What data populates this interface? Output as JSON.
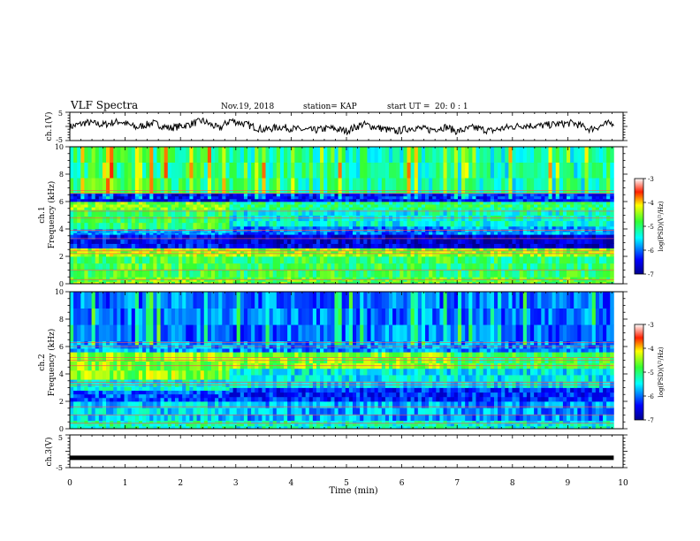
{
  "header": {
    "title": "VLF Spectra",
    "date": "Nov.19, 2018",
    "station": "station= KAP",
    "start_label": "start  UT =",
    "start_time": "20: 0  : 1"
  },
  "chart_data": [
    {
      "type": "line",
      "panel": "ch1-waveform",
      "ylabel": "ch.1(V)",
      "ylim": [
        -5,
        5
      ],
      "yticks": [
        "5",
        "-5"
      ],
      "xlim": [
        0,
        10
      ],
      "data_xmax": 9.83,
      "series": [
        {
          "x": [
            0,
            0.3,
            0.6,
            0.9,
            1.2,
            1.5,
            1.8,
            2.1,
            2.4,
            2.7,
            2.9,
            3.2,
            3.5,
            3.8,
            4.1,
            4.4,
            4.7,
            5.0,
            5.3,
            5.6,
            5.9,
            6.2,
            6.5,
            6.8,
            7.0,
            7.3,
            7.6,
            7.9,
            8.2,
            8.5,
            8.8,
            9.1,
            9.4,
            9.7,
            9.83
          ],
          "y": [
            -0.2,
            1.4,
            0.6,
            1.8,
            -0.4,
            1.2,
            -0.6,
            0.4,
            2.0,
            -0.8,
            2.2,
            0.6,
            -1.2,
            -0.2,
            -1.0,
            -1.4,
            -0.6,
            -1.6,
            0.8,
            -0.6,
            -1.8,
            -0.4,
            -1.2,
            -0.2,
            -1.8,
            -0.4,
            -1.6,
            -0.4,
            0.4,
            0.2,
            0.8,
            1.2,
            -1.0,
            0.8,
            1.4
          ]
        }
      ]
    },
    {
      "type": "heatmap",
      "panel": "ch1-spectrogram",
      "ylabel": "Frequency (kHz)",
      "channel_label": "ch.1",
      "ylim": [
        0,
        10
      ],
      "yticks": [
        "0",
        "2",
        "4",
        "6",
        "8",
        "10"
      ],
      "xlim": [
        0,
        10
      ],
      "data_xmax": 9.83,
      "colorbar": {
        "label": "log(PSD)(V²/Hz)",
        "range": [
          -7,
          -3
        ],
        "ticks": [
          "-3",
          "-4",
          "-5",
          "-6",
          "-7"
        ]
      },
      "segments": [
        {
          "x0": 0,
          "x1": 2.9,
          "bands": [
            {
              "f0": 0,
              "f1": 0.5,
              "level": -4.6
            },
            {
              "f0": 0.5,
              "f1": 2.0,
              "level": -4.8
            },
            {
              "f0": 2.0,
              "f1": 2.6,
              "level": -4.4
            },
            {
              "f0": 2.6,
              "f1": 3.6,
              "level": -6.4
            },
            {
              "f0": 3.6,
              "f1": 4.0,
              "level": -5.8
            },
            {
              "f0": 4.0,
              "f1": 5.4,
              "level": -4.9
            },
            {
              "f0": 5.4,
              "f1": 6.0,
              "level": -4.6
            },
            {
              "f0": 6.0,
              "f1": 6.6,
              "level": -6.5
            },
            {
              "f0": 6.6,
              "f1": 10.0,
              "level": -5.0
            }
          ]
        },
        {
          "x0": 2.9,
          "x1": 6.9,
          "bands": [
            {
              "f0": 0,
              "f1": 0.5,
              "level": -4.7
            },
            {
              "f0": 0.5,
              "f1": 2.0,
              "level": -4.9
            },
            {
              "f0": 2.0,
              "f1": 2.6,
              "level": -4.5
            },
            {
              "f0": 2.6,
              "f1": 3.6,
              "level": -6.6
            },
            {
              "f0": 3.6,
              "f1": 4.2,
              "level": -6.0
            },
            {
              "f0": 4.2,
              "f1": 5.4,
              "level": -5.4
            },
            {
              "f0": 5.4,
              "f1": 6.0,
              "level": -5.1
            },
            {
              "f0": 6.0,
              "f1": 6.6,
              "level": -6.4
            },
            {
              "f0": 6.6,
              "f1": 10.0,
              "level": -5.2
            }
          ]
        },
        {
          "x0": 6.9,
          "x1": 9.83,
          "bands": [
            {
              "f0": 0,
              "f1": 0.5,
              "level": -4.7
            },
            {
              "f0": 0.5,
              "f1": 2.0,
              "level": -5.0
            },
            {
              "f0": 2.0,
              "f1": 2.6,
              "level": -4.5
            },
            {
              "f0": 2.6,
              "f1": 3.6,
              "level": -6.7
            },
            {
              "f0": 3.6,
              "f1": 4.2,
              "level": -5.8
            },
            {
              "f0": 4.2,
              "f1": 5.4,
              "level": -5.3
            },
            {
              "f0": 5.4,
              "f1": 6.0,
              "level": -5.0
            },
            {
              "f0": 6.0,
              "f1": 6.6,
              "level": -6.3
            },
            {
              "f0": 6.6,
              "f1": 10.0,
              "level": -5.3
            }
          ]
        }
      ],
      "lines": [
        0.3,
        1.0,
        2.2,
        2.4,
        3.3,
        3.9,
        4.8,
        5.3,
        6.6,
        6.8
      ]
    },
    {
      "type": "heatmap",
      "panel": "ch2-spectrogram",
      "ylabel": "Frequency (kHz)",
      "channel_label": "ch.2",
      "ylim": [
        0,
        10
      ],
      "yticks": [
        "0",
        "2",
        "4",
        "6",
        "8",
        "10"
      ],
      "xlim": [
        0,
        10
      ],
      "data_xmax": 9.83,
      "colorbar": {
        "label": "log(PSD)(V²/Hz)",
        "range": [
          -7,
          -3
        ],
        "ticks": [
          "-3",
          "-4",
          "-5",
          "-6",
          "-7"
        ]
      },
      "segments": [
        {
          "x0": 0,
          "x1": 2.9,
          "bands": [
            {
              "f0": 0,
              "f1": 0.6,
              "level": -5.2
            },
            {
              "f0": 0.6,
              "f1": 2.0,
              "level": -5.6
            },
            {
              "f0": 2.0,
              "f1": 2.8,
              "level": -6.1
            },
            {
              "f0": 2.8,
              "f1": 3.6,
              "level": -5.4
            },
            {
              "f0": 3.6,
              "f1": 5.6,
              "level": -4.5
            },
            {
              "f0": 5.6,
              "f1": 6.4,
              "level": -5.8
            },
            {
              "f0": 6.4,
              "f1": 10.0,
              "level": -6.0
            }
          ]
        },
        {
          "x0": 2.9,
          "x1": 6.9,
          "bands": [
            {
              "f0": 0,
              "f1": 0.6,
              "level": -5.3
            },
            {
              "f0": 0.6,
              "f1": 2.0,
              "level": -5.8
            },
            {
              "f0": 2.0,
              "f1": 3.0,
              "level": -6.3
            },
            {
              "f0": 3.0,
              "f1": 4.4,
              "level": -5.5
            },
            {
              "f0": 4.4,
              "f1": 5.6,
              "level": -4.6
            },
            {
              "f0": 5.6,
              "f1": 6.4,
              "level": -5.9
            },
            {
              "f0": 6.4,
              "f1": 10.0,
              "level": -6.0
            }
          ]
        },
        {
          "x0": 6.9,
          "x1": 9.83,
          "bands": [
            {
              "f0": 0,
              "f1": 0.6,
              "level": -5.4
            },
            {
              "f0": 0.6,
              "f1": 2.0,
              "level": -5.9
            },
            {
              "f0": 2.0,
              "f1": 3.0,
              "level": -6.3
            },
            {
              "f0": 3.0,
              "f1": 4.4,
              "level": -5.5
            },
            {
              "f0": 4.4,
              "f1": 5.6,
              "level": -4.9
            },
            {
              "f0": 5.6,
              "f1": 6.4,
              "level": -5.9
            },
            {
              "f0": 6.4,
              "f1": 10.0,
              "level": -6.0
            }
          ]
        }
      ],
      "lines": [
        0.4,
        1.0,
        1.6,
        3.2,
        3.4,
        4.6,
        5.0,
        5.2,
        6.0,
        6.3
      ]
    },
    {
      "type": "line",
      "panel": "ch3-waveform",
      "ylabel": "ch.3(V)",
      "ylim": [
        -5,
        5
      ],
      "yticks": [
        "5",
        "-5"
      ],
      "xlim": [
        0,
        10
      ],
      "xlabel": "Time (min)",
      "xticks": [
        "0",
        "1",
        "2",
        "3",
        "4",
        "5",
        "6",
        "7",
        "8",
        "9",
        "10"
      ],
      "data_xmax": 9.83,
      "series": [
        {
          "x": [
            0,
            9.83
          ],
          "y": [
            -2,
            -2
          ]
        }
      ]
    }
  ]
}
